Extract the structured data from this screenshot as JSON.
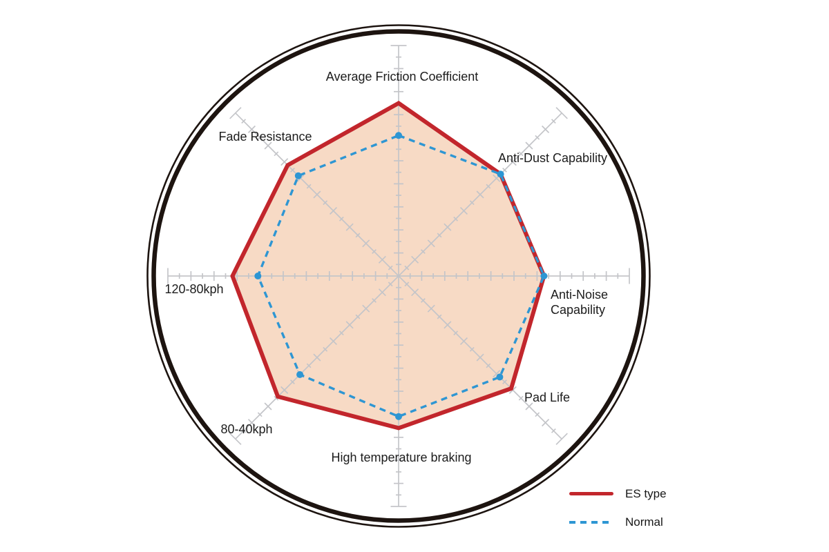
{
  "chart_data": {
    "type": "radar",
    "title": "",
    "axes": [
      "Average Friction Coefficient",
      "Anti-Dust Capability",
      "Anti-Noise Capability",
      "Pad Life",
      "High temperature braking",
      "80-40kph",
      "120-80kph",
      "Fade Resistance"
    ],
    "scale": {
      "min": 0,
      "max": 10,
      "major_tick": 1,
      "minor_tick": 0.5
    },
    "series": [
      {
        "name": "ES type",
        "color": "#c2262c",
        "fill_color": "#f7dac5",
        "line_style": "solid",
        "markers": false,
        "values": [
          7.5,
          6.25,
          6.3,
          6.9,
          6.6,
          7.4,
          7.2,
          6.8
        ]
      },
      {
        "name": "Normal",
        "color": "#2e96d3",
        "fill_color": "none",
        "line_style": "dashed",
        "markers": true,
        "values": [
          6.1,
          6.25,
          6.3,
          6.2,
          6.1,
          6.05,
          6.1,
          6.15
        ]
      }
    ],
    "legend_position": "bottom-right",
    "grid": {
      "ring_color": "#1d1410",
      "spoke_color": "#c4c5c9",
      "shape": "double-circle-border"
    }
  }
}
